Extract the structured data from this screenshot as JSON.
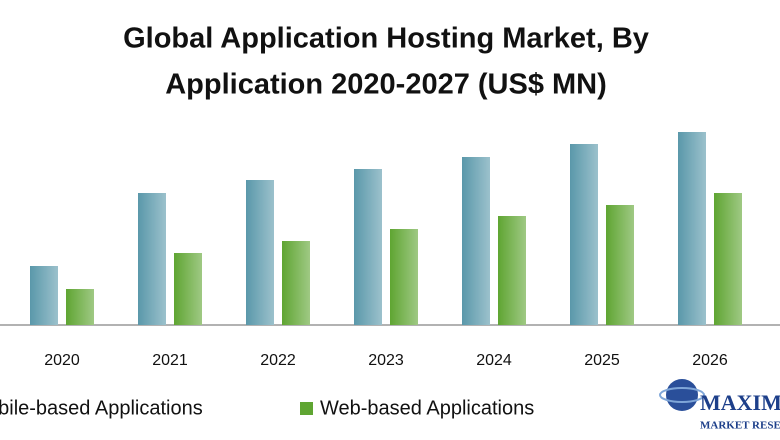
{
  "chart_data": {
    "type": "bar",
    "title": [
      "Global Application Hosting Market, By",
      "Application 2020-2027  (US$ MN)"
    ],
    "categories": [
      "2020",
      "2021",
      "2022",
      "2023",
      "2024",
      "2025",
      "2026"
    ],
    "series": [
      {
        "name": "obile-based Applications",
        "color": "#5a98aa",
        "values": [
          59,
          132,
          145,
          156,
          168,
          181,
          193
        ]
      },
      {
        "name": "Web-based Applications",
        "color": "#5fa532",
        "values": [
          36,
          72,
          84,
          96,
          109,
          120,
          132
        ]
      }
    ],
    "logo": {
      "name": "MAXIMIZ",
      "tagline": "MARKET RESEA"
    }
  }
}
